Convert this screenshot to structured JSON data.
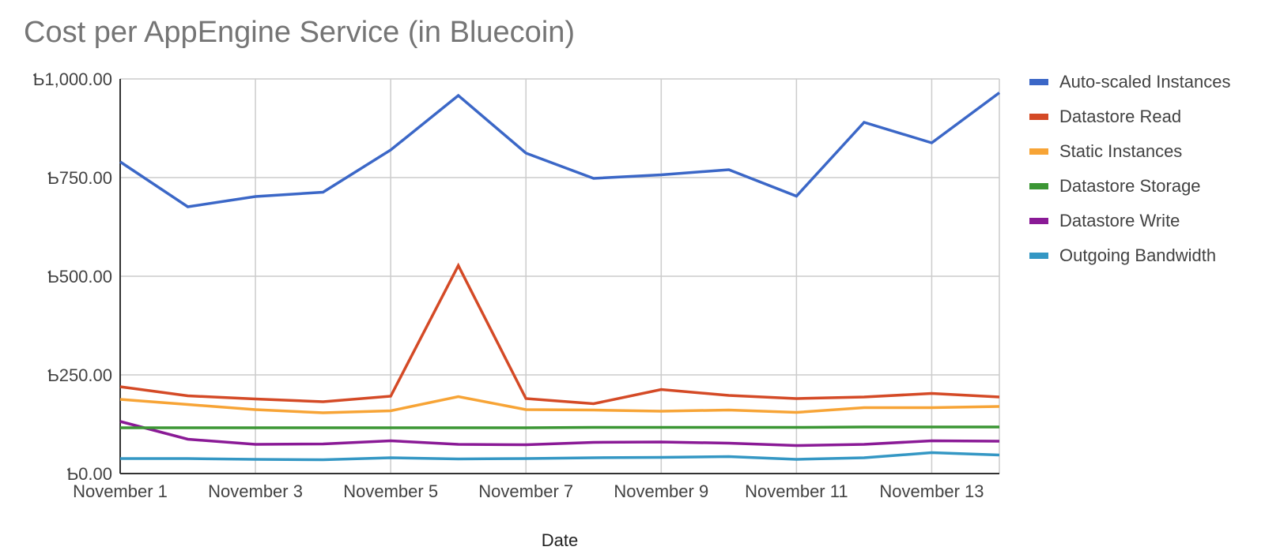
{
  "chart_data": {
    "type": "line",
    "title": "Cost per AppEngine Service (in Bluecoin)",
    "xlabel": "Date",
    "ylabel": "",
    "currency_symbol": "Ƅ",
    "ylim": [
      0,
      1000
    ],
    "yticks": [
      0,
      250,
      500,
      750,
      1000
    ],
    "ytick_labels": [
      "Ƅ0.00",
      "Ƅ250.00",
      "Ƅ500.00",
      "Ƅ750.00",
      "Ƅ1,000.00"
    ],
    "grid": true,
    "legend_position": "right",
    "x": [
      "November 1",
      "November 2",
      "November 3",
      "November 4",
      "November 5",
      "November 6",
      "November 7",
      "November 8",
      "November 9",
      "November 10",
      "November 11",
      "November 12",
      "November 13",
      "November 14"
    ],
    "xtick_labels": [
      "November 1",
      "November 3",
      "November 5",
      "November 7",
      "November 9",
      "November 11",
      "November 13"
    ],
    "series": [
      {
        "name": "Auto-scaled Instances",
        "color": "#3b67c7",
        "values": [
          790,
          676,
          702,
          713,
          820,
          958,
          812,
          748,
          757,
          770,
          703,
          890,
          838,
          965
        ]
      },
      {
        "name": "Datastore Read",
        "color": "#d44a26",
        "values": [
          220,
          197,
          189,
          182,
          196,
          527,
          190,
          177,
          213,
          198,
          190,
          194,
          203,
          194
        ]
      },
      {
        "name": "Static Instances",
        "color": "#f7a436",
        "values": [
          188,
          175,
          162,
          154,
          159,
          195,
          162,
          161,
          158,
          161,
          155,
          167,
          167,
          170
        ]
      },
      {
        "name": "Datastore Storage",
        "color": "#3b9634",
        "values": [
          116,
          116,
          116,
          116,
          116,
          116,
          116,
          117,
          117,
          117,
          117,
          118,
          118,
          118
        ]
      },
      {
        "name": "Datastore Write",
        "color": "#8a1a96",
        "values": [
          132,
          87,
          74,
          75,
          83,
          74,
          73,
          79,
          80,
          77,
          71,
          74,
          83,
          82
        ]
      },
      {
        "name": "Outgoing Bandwidth",
        "color": "#3497c4",
        "values": [
          38,
          38,
          36,
          35,
          40,
          37,
          38,
          40,
          41,
          43,
          36,
          40,
          53,
          47
        ]
      }
    ]
  }
}
